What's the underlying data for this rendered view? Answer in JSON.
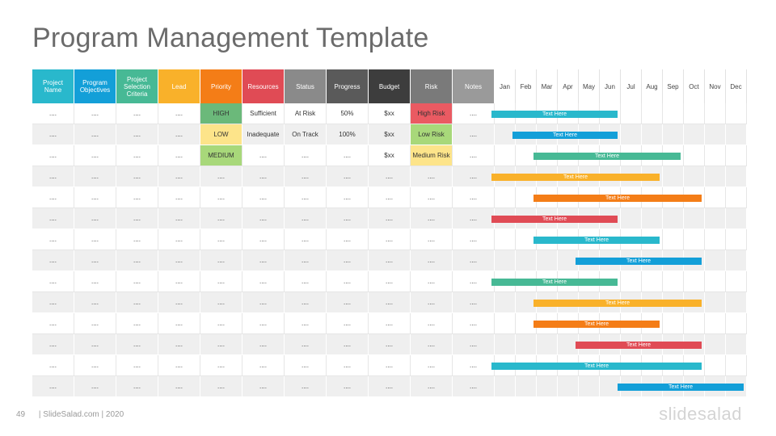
{
  "title": "Program Management Template",
  "headers": [
    {
      "label": "Project Name",
      "color": "#29b8cc"
    },
    {
      "label": "Program Objectives",
      "color": "#139fd8"
    },
    {
      "label": "Project Selection Criteria",
      "color": "#47b995"
    },
    {
      "label": "Lead",
      "color": "#f9b12a"
    },
    {
      "label": "Priority",
      "color": "#f47d17"
    },
    {
      "label": "Resources",
      "color": "#e04b55"
    },
    {
      "label": "Status",
      "color": "#8a8a8a"
    },
    {
      "label": "Progress",
      "color": "#5a5a5a"
    },
    {
      "label": "Budget",
      "color": "#3d3d3d"
    },
    {
      "label": "Risk",
      "color": "#7a7a7a"
    },
    {
      "label": "Notes",
      "color": "#9a9a9a"
    }
  ],
  "months": [
    "Jan",
    "Feb",
    "Mar",
    "Apr",
    "May",
    "Jun",
    "Jul",
    "Aug",
    "Sep",
    "Oct",
    "Nov",
    "Dec"
  ],
  "rows": [
    {
      "cells": [
        "....",
        "....",
        "....",
        "....",
        "HIGH",
        "Sufficient",
        "At Risk",
        "50%",
        "$xx",
        "High Risk",
        "...."
      ],
      "priority_color": "#6bb97a",
      "risk_color": "#ea5a62"
    },
    {
      "cells": [
        "....",
        "....",
        "....",
        "....",
        "LOW",
        "Inadequate",
        "On Track",
        "100%",
        "$xx",
        "Low Risk",
        "...."
      ],
      "priority_color": "#fde48a",
      "risk_color": "#a8d87a"
    },
    {
      "cells": [
        "....",
        "....",
        "....",
        "....",
        "MEDIUM",
        "....",
        "....",
        "....",
        "$xx",
        "Medium Risk",
        "...."
      ],
      "priority_color": "#a8d87a",
      "risk_color": "#fde48a"
    },
    {
      "cells": [
        "....",
        "....",
        "....",
        "....",
        "....",
        "....",
        "....",
        "....",
        "....",
        "....",
        "...."
      ]
    },
    {
      "cells": [
        "....",
        "....",
        "....",
        "....",
        "....",
        "....",
        "....",
        "....",
        "....",
        "....",
        "...."
      ]
    },
    {
      "cells": [
        "....",
        "....",
        "....",
        "....",
        "....",
        "....",
        "....",
        "....",
        "....",
        "....",
        "...."
      ]
    },
    {
      "cells": [
        "....",
        "....",
        "....",
        "....",
        "....",
        "....",
        "....",
        "....",
        "....",
        "....",
        "...."
      ]
    },
    {
      "cells": [
        "....",
        "....",
        "....",
        "....",
        "....",
        "....",
        "....",
        "....",
        "....",
        "....",
        "...."
      ]
    },
    {
      "cells": [
        "....",
        "....",
        "....",
        "....",
        "....",
        "....",
        "....",
        "....",
        "....",
        "....",
        "...."
      ]
    },
    {
      "cells": [
        "....",
        "....",
        "....",
        "....",
        "....",
        "....",
        "....",
        "....",
        "....",
        "....",
        "...."
      ]
    },
    {
      "cells": [
        "....",
        "....",
        "....",
        "....",
        "....",
        "....",
        "....",
        "....",
        "....",
        "....",
        "...."
      ]
    },
    {
      "cells": [
        "....",
        "....",
        "....",
        "....",
        "....",
        "....",
        "....",
        "....",
        "....",
        "....",
        "...."
      ]
    },
    {
      "cells": [
        "....",
        "....",
        "....",
        "....",
        "....",
        "....",
        "....",
        "....",
        "....",
        "....",
        "...."
      ]
    },
    {
      "cells": [
        "....",
        "....",
        "....",
        "....",
        "....",
        "....",
        "....",
        "....",
        "....",
        "....",
        "...."
      ]
    }
  ],
  "bars": [
    {
      "label": "Text Here",
      "start_month": 0,
      "end_month": 6,
      "color": "#29b8cc"
    },
    {
      "label": "Text Here",
      "start_month": 1,
      "end_month": 6,
      "color": "#139fd8"
    },
    {
      "label": "Text Here",
      "start_month": 2,
      "end_month": 9,
      "color": "#47b995"
    },
    {
      "label": "Text Here",
      "start_month": 0,
      "end_month": 8,
      "color": "#f9b12a"
    },
    {
      "label": "Text Here",
      "start_month": 2,
      "end_month": 10,
      "color": "#f47d17"
    },
    {
      "label": "Text Here",
      "start_month": 0,
      "end_month": 6,
      "color": "#e04b55"
    },
    {
      "label": "Text Here",
      "start_month": 2,
      "end_month": 8,
      "color": "#29b8cc"
    },
    {
      "label": "Text Here",
      "start_month": 4,
      "end_month": 10,
      "color": "#139fd8"
    },
    {
      "label": "Text Here",
      "start_month": 0,
      "end_month": 6,
      "color": "#47b995"
    },
    {
      "label": "Text Here",
      "start_month": 2,
      "end_month": 10,
      "color": "#f9b12a"
    },
    {
      "label": "Text Here",
      "start_month": 2,
      "end_month": 8,
      "color": "#f47d17"
    },
    {
      "label": "Text Here",
      "start_month": 4,
      "end_month": 10,
      "color": "#e04b55"
    },
    {
      "label": "Text Here",
      "start_month": 0,
      "end_month": 10,
      "color": "#29b8cc"
    },
    {
      "label": "Text Here",
      "start_month": 6,
      "end_month": 12,
      "color": "#139fd8"
    }
  ],
  "footer": {
    "page": "49",
    "text": "| SlideSalad.com | 2020"
  },
  "logo": "slidesalad"
}
